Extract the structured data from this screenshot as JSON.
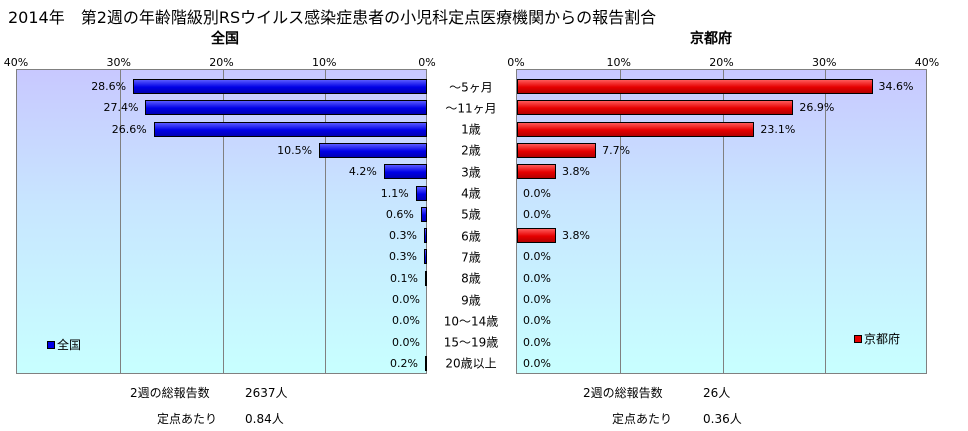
{
  "title": "2014年　第2週の年齢階級別RSウイルス感染症患者の小児科定点医療機関からの報告割合",
  "colors": {
    "national": "#0000e6",
    "kyoto": "#e60000"
  },
  "chart_data": [
    {
      "type": "bar",
      "orientation": "horizontal-reversed",
      "title": "全国",
      "xlim": [
        0,
        40
      ],
      "ticks": [
        "40%",
        "30%",
        "20%",
        "10%",
        "0%"
      ],
      "categories": [
        "～5ヶ月",
        "～11ヶ月",
        "1歳",
        "2歳",
        "3歳",
        "4歳",
        "5歳",
        "6歳",
        "7歳",
        "8歳",
        "9歳",
        "10～14歳",
        "15～19歳",
        "20歳以上"
      ],
      "series": [
        {
          "name": "全国",
          "values": [
            28.6,
            27.4,
            26.6,
            10.5,
            4.2,
            1.1,
            0.6,
            0.3,
            0.3,
            0.1,
            0.0,
            0.0,
            0.0,
            0.2
          ]
        }
      ],
      "data_labels": [
        "28.6%",
        "27.4%",
        "26.6%",
        "10.5%",
        "4.2%",
        "1.1%",
        "0.6%",
        "0.3%",
        "0.3%",
        "0.1%",
        "0.0%",
        "0.0%",
        "0.0%",
        "0.2%"
      ],
      "legend": "bottom-left",
      "grid": true
    },
    {
      "type": "bar",
      "orientation": "horizontal",
      "title": "京都府",
      "xlim": [
        0,
        40
      ],
      "ticks": [
        "0%",
        "10%",
        "20%",
        "30%",
        "40%"
      ],
      "categories": [
        "～5ヶ月",
        "～11ヶ月",
        "1歳",
        "2歳",
        "3歳",
        "4歳",
        "5歳",
        "6歳",
        "7歳",
        "8歳",
        "9歳",
        "10～14歳",
        "15～19歳",
        "20歳以上"
      ],
      "series": [
        {
          "name": "京都府",
          "values": [
            34.6,
            26.9,
            23.1,
            7.7,
            3.8,
            0.0,
            0.0,
            3.8,
            0.0,
            0.0,
            0.0,
            0.0,
            0.0,
            0.0
          ]
        }
      ],
      "data_labels": [
        "34.6%",
        "26.9%",
        "23.1%",
        "7.7%",
        "3.8%",
        "0.0%",
        "0.0%",
        "3.8%",
        "0.0%",
        "0.0%",
        "0.0%",
        "0.0%",
        "0.0%",
        "0.0%"
      ],
      "legend": "bottom-right",
      "grid": true
    }
  ],
  "footer": {
    "national": {
      "total_label": "2週の総報告数",
      "total_value": "2637人",
      "per_label": "定点あたり",
      "per_value": "0.84人"
    },
    "kyoto": {
      "total_label": "2週の総報告数",
      "total_value": "26人",
      "per_label": "定点あたり",
      "per_value": "0.36人"
    }
  }
}
